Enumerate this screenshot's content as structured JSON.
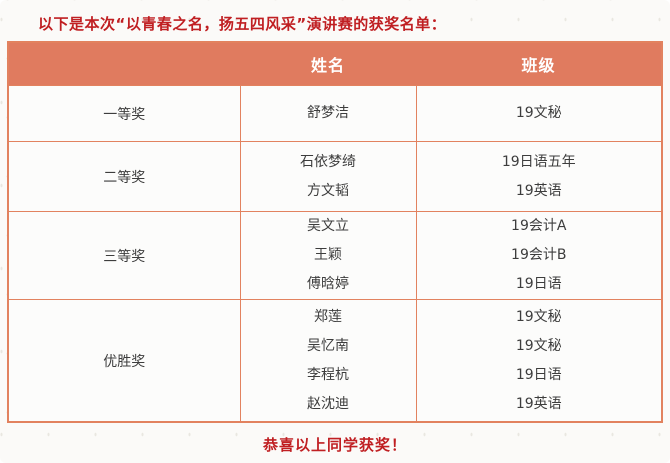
{
  "page": {
    "title": "以下是本次“以青春之名，扬五四风采”演讲赛的获奖名单：",
    "footer": "恭喜以上同学获奖！"
  },
  "table": {
    "headers": {
      "award": "",
      "name": "姓名",
      "class": "班级"
    },
    "rows": [
      {
        "award": "一等奖",
        "winners": [
          {
            "name": "舒梦洁",
            "class": "19文秘"
          }
        ]
      },
      {
        "award": "二等奖",
        "winners": [
          {
            "name": "石依梦绮",
            "class": "19日语五年"
          },
          {
            "name": "方文韬",
            "class": "19英语"
          }
        ]
      },
      {
        "award": "三等奖",
        "winners": [
          {
            "name": "吴文立",
            "class": "19会计A"
          },
          {
            "name": "王颖",
            "class": "19会计B"
          },
          {
            "name": "傅晗婷",
            "class": "19日语"
          }
        ]
      },
      {
        "award": "优胜奖",
        "winners": [
          {
            "name": "郑莲",
            "class": "19文秘"
          },
          {
            "name": "吴忆南",
            "class": "19文秘"
          },
          {
            "name": "李程杭",
            "class": "19日语"
          },
          {
            "name": "赵沈迪",
            "class": "19英语"
          }
        ]
      }
    ]
  },
  "colors": {
    "accent_red": "#c01f22",
    "header_bg": "#e07b5f",
    "table_border": "#e2825f",
    "cell_bg": "#fcfcfb",
    "body_text": "#3d3d3d"
  }
}
